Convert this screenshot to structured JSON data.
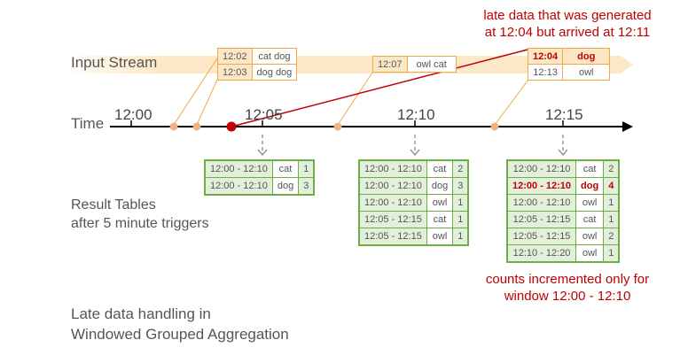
{
  "labels": {
    "input_stream": "Input Stream",
    "time": "Time",
    "result_tables_line1": "Result Tables",
    "result_tables_line2": "after 5 minute triggers",
    "caption_line1": "Late data handling in",
    "caption_line2": "Windowed Grouped Aggregation"
  },
  "time_ticks": [
    "12:00",
    "12:05",
    "12:10",
    "12:15"
  ],
  "annotations": {
    "late_data_line1": "late data that was generated",
    "late_data_line2": "at 12:04 but arrived at 12:11",
    "counts_line1": "counts incremented only for",
    "counts_line2": "window 12:00 - 12:10"
  },
  "input_events": [
    {
      "rows": [
        {
          "time": "12:02",
          "words": "cat dog"
        },
        {
          "time": "12:03",
          "words": "dog dog"
        }
      ]
    },
    {
      "rows": [
        {
          "time": "12:07",
          "words": "owl cat"
        }
      ]
    },
    {
      "rows": [
        {
          "time": "12:04",
          "words": "dog",
          "late": true
        },
        {
          "time": "12:13",
          "words": "owl"
        }
      ]
    }
  ],
  "result_tables": [
    {
      "rows": [
        {
          "window": "12:00 - 12:10",
          "word": "cat",
          "count": "1"
        },
        {
          "window": "12:00 - 12:10",
          "word": "dog",
          "count": "3"
        }
      ]
    },
    {
      "rows": [
        {
          "window": "12:00 - 12:10",
          "word": "cat",
          "count": "2"
        },
        {
          "window": "12:00 - 12:10",
          "word": "dog",
          "count": "3"
        },
        {
          "window": "12:00 - 12:10",
          "word": "owl",
          "count": "1"
        },
        {
          "window": "12:05 - 12:15",
          "word": "cat",
          "count": "1"
        },
        {
          "window": "12:05 - 12:15",
          "word": "owl",
          "count": "1"
        }
      ]
    },
    {
      "rows": [
        {
          "window": "12:00 - 12:10",
          "word": "cat",
          "count": "2"
        },
        {
          "window": "12:00 - 12:10",
          "word": "dog",
          "count": "4",
          "updated": true
        },
        {
          "window": "12:00 - 12:10",
          "word": "owl",
          "count": "1"
        },
        {
          "window": "12:05 - 12:15",
          "word": "cat",
          "count": "1"
        },
        {
          "window": "12:05 - 12:15",
          "word": "owl",
          "count": "2"
        },
        {
          "window": "12:10 - 12:20",
          "word": "owl",
          "count": "1"
        }
      ]
    }
  ],
  "colors": {
    "stream_band": "#fde9c7",
    "event_border": "#f0a848",
    "result_border": "#70ad47",
    "late_red": "#c00000",
    "event_dot": "#f4b183"
  }
}
